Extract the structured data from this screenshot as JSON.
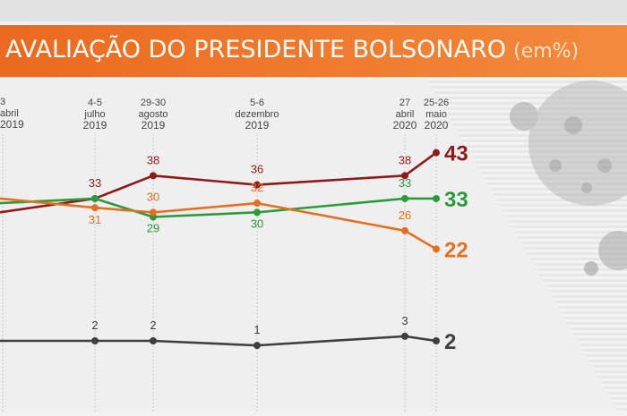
{
  "title": "AVALIAÇÃO DO PRESIDENTE BOLSONARO",
  "title_unit": "(em%)",
  "colors": {
    "banner": "#ef7a2a",
    "dark_red": "#8e1b1b",
    "green": "#2a9a3a",
    "orange": "#e3701f",
    "gray": "#3f3f3f"
  },
  "chart_data": {
    "type": "line",
    "title": "AVALIAÇÃO DO PRESIDENTE BOLSONARO (em%)",
    "ylim": [
      0,
      50
    ],
    "grid": false,
    "legend": "none",
    "x": [
      {
        "days": [
          "",
          "3"
        ],
        "month": "abril",
        "year": "2019"
      },
      {
        "days": [
          "4-5"
        ],
        "month": "julho",
        "year": "2019"
      },
      {
        "days": [
          "29-30"
        ],
        "month": "agosto",
        "year": "2019"
      },
      {
        "days": [
          "5-6"
        ],
        "month": "dezembro",
        "year": "2019"
      },
      {
        "days": [
          "27"
        ],
        "month": "abril",
        "year": "2020"
      },
      {
        "days": [
          "25-26"
        ],
        "month": "maio",
        "year": "2020"
      }
    ],
    "series": [
      {
        "key": "dark_red",
        "values": [
          30,
          33,
          38,
          36,
          38,
          43
        ],
        "labels": [
          "",
          "33",
          "38",
          "36",
          "38",
          "43"
        ]
      },
      {
        "key": "green",
        "values": [
          32,
          33,
          29,
          30,
          33,
          33
        ],
        "labels": [
          "",
          "",
          "29",
          "30",
          "33",
          "33"
        ]
      },
      {
        "key": "orange",
        "values": [
          33,
          31,
          30,
          32,
          26,
          22
        ],
        "labels": [
          "",
          "31",
          "30",
          "32",
          "26",
          "22"
        ]
      },
      {
        "key": "gray",
        "values": [
          2,
          2,
          2,
          1,
          3,
          2
        ],
        "labels": [
          "",
          "2",
          "2",
          "1",
          "3",
          "2"
        ]
      }
    ]
  }
}
